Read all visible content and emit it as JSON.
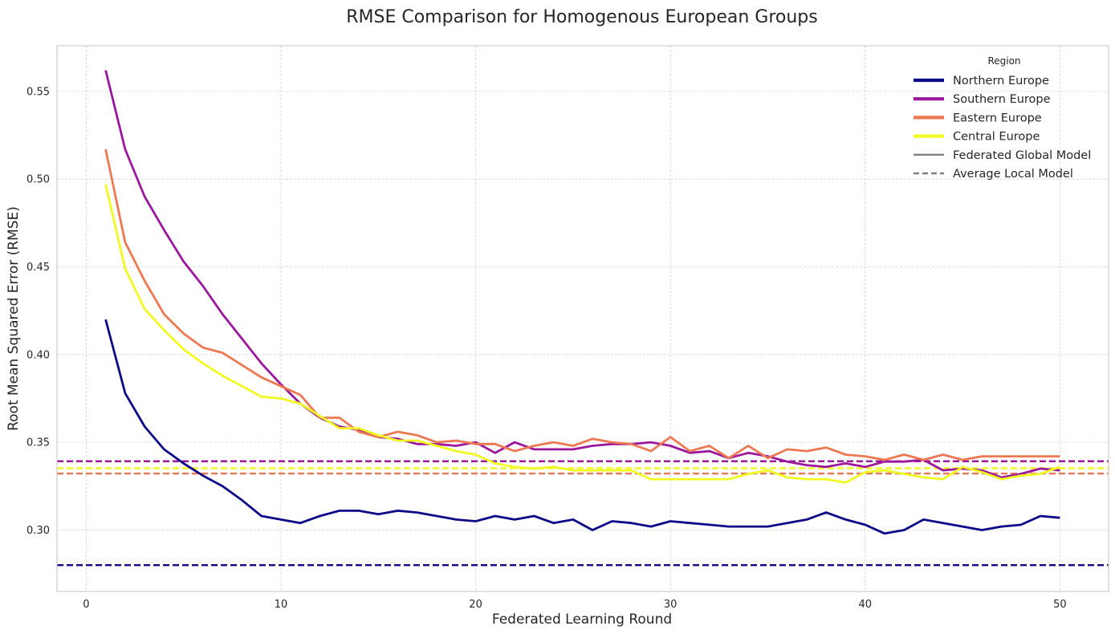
{
  "chart_data": {
    "type": "line",
    "title": "RMSE Comparison for Homogenous European Groups",
    "xlabel": "Federated Learning Round",
    "ylabel": "Root Mean Squared Error (RMSE)",
    "xlim": [
      -1.5,
      52.5
    ],
    "ylim": [
      0.265,
      0.576
    ],
    "xticks": [
      0,
      10,
      20,
      30,
      40,
      50
    ],
    "yticks": [
      0.3,
      0.35,
      0.4,
      0.45,
      0.5,
      0.55
    ],
    "ytick_labels": [
      "0.30",
      "0.35",
      "0.40",
      "0.45",
      "0.50",
      "0.55"
    ],
    "grid": true,
    "legend": {
      "title": "Region",
      "placement": "top-right",
      "entries": [
        {
          "label": "Northern Europe",
          "color": "#0d0887",
          "style": "solid",
          "key": "northern"
        },
        {
          "label": "Southern Europe",
          "color": "#9c179e",
          "style": "solid",
          "key": "southern"
        },
        {
          "label": "Eastern Europe",
          "color": "#ed7953",
          "style": "solid",
          "key": "eastern"
        },
        {
          "label": "Central Europe",
          "color": "#f0f921",
          "style": "solid",
          "key": "central"
        },
        {
          "label": "Federated Global Model",
          "color": "#808080",
          "style": "solid",
          "key": "federated"
        },
        {
          "label": "Average Local Model",
          "color": "#808080",
          "style": "dashed",
          "key": "average"
        }
      ]
    },
    "x": [
      1,
      2,
      3,
      4,
      5,
      6,
      7,
      8,
      9,
      10,
      11,
      12,
      13,
      14,
      15,
      16,
      17,
      18,
      19,
      20,
      21,
      22,
      23,
      24,
      25,
      26,
      27,
      28,
      29,
      30,
      31,
      32,
      33,
      34,
      35,
      36,
      37,
      38,
      39,
      40,
      41,
      42,
      43,
      44,
      45,
      46,
      47,
      48,
      49,
      50
    ],
    "series": [
      {
        "name": "Southern Europe",
        "color": "#9c179e",
        "values": [
          0.562,
          0.517,
          0.49,
          0.471,
          0.453,
          0.439,
          0.423,
          0.409,
          0.395,
          0.383,
          0.372,
          0.364,
          0.359,
          0.357,
          0.353,
          0.352,
          0.349,
          0.349,
          0.348,
          0.35,
          0.344,
          0.35,
          0.346,
          0.346,
          0.346,
          0.348,
          0.349,
          0.349,
          0.35,
          0.348,
          0.344,
          0.345,
          0.341,
          0.344,
          0.342,
          0.339,
          0.337,
          0.336,
          0.338,
          0.336,
          0.339,
          0.339,
          0.34,
          0.334,
          0.335,
          0.334,
          0.33,
          0.332,
          0.335,
          0.334
        ]
      },
      {
        "name": "Eastern Europe",
        "color": "#ed7953",
        "values": [
          0.517,
          0.464,
          0.442,
          0.423,
          0.412,
          0.404,
          0.401,
          0.394,
          0.387,
          0.382,
          0.377,
          0.364,
          0.364,
          0.356,
          0.353,
          0.356,
          0.354,
          0.35,
          0.351,
          0.349,
          0.349,
          0.345,
          0.348,
          0.35,
          0.348,
          0.352,
          0.35,
          0.349,
          0.345,
          0.353,
          0.345,
          0.348,
          0.341,
          0.348,
          0.341,
          0.346,
          0.345,
          0.347,
          0.343,
          0.342,
          0.34,
          0.343,
          0.34,
          0.343,
          0.34,
          0.342,
          0.342,
          0.342,
          0.342,
          0.342
        ]
      },
      {
        "name": "Central Europe",
        "color": "#f0f921",
        "values": [
          0.497,
          0.449,
          0.426,
          0.414,
          0.403,
          0.395,
          0.388,
          0.382,
          0.376,
          0.375,
          0.372,
          0.365,
          0.358,
          0.358,
          0.354,
          0.351,
          0.351,
          0.348,
          0.345,
          0.343,
          0.338,
          0.336,
          0.335,
          0.336,
          0.334,
          0.334,
          0.334,
          0.334,
          0.329,
          0.329,
          0.329,
          0.329,
          0.329,
          0.332,
          0.334,
          0.33,
          0.329,
          0.329,
          0.327,
          0.333,
          0.334,
          0.332,
          0.33,
          0.329,
          0.336,
          0.333,
          0.329,
          0.331,
          0.332,
          0.336
        ]
      },
      {
        "name": "Northern Europe",
        "color": "#0d0887",
        "values": [
          0.42,
          0.378,
          0.359,
          0.346,
          0.338,
          0.331,
          0.325,
          0.317,
          0.308,
          0.306,
          0.304,
          0.308,
          0.311,
          0.311,
          0.309,
          0.311,
          0.31,
          0.308,
          0.306,
          0.305,
          0.308,
          0.306,
          0.308,
          0.304,
          0.306,
          0.3,
          0.305,
          0.304,
          0.302,
          0.305,
          0.304,
          0.303,
          0.302,
          0.302,
          0.302,
          0.304,
          0.306,
          0.31,
          0.306,
          0.303,
          0.298,
          0.3,
          0.306,
          0.304,
          0.302,
          0.3,
          0.302,
          0.303,
          0.308,
          0.307
        ]
      }
    ],
    "average_local_model": [
      {
        "region": "Southern Europe",
        "color": "#9c179e",
        "value": 0.3392
      },
      {
        "region": "Central Europe",
        "color": "#f0f921",
        "value": 0.3352
      },
      {
        "region": "Eastern Europe",
        "color": "#ed7953",
        "value": 0.3322
      },
      {
        "region": "Northern Europe",
        "color": "#0d0887",
        "value": 0.28
      }
    ]
  }
}
